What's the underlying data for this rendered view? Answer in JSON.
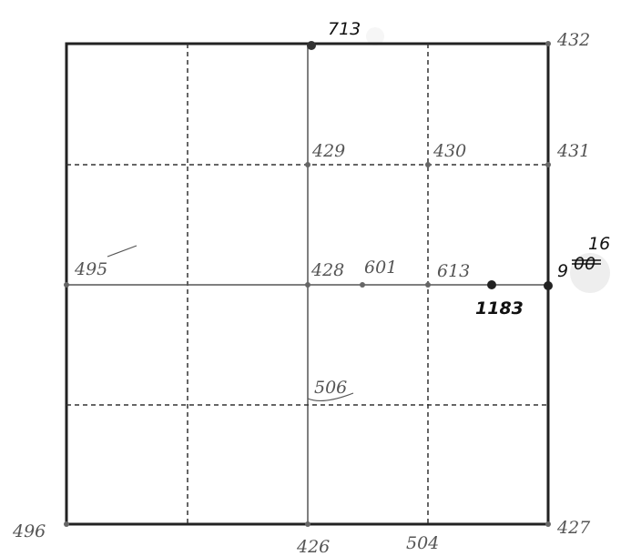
{
  "colors": {
    "ink": "#222222",
    "pencil": "#555555",
    "paper": "#ffffff"
  },
  "labels": {
    "top_mid": "713",
    "top_right": "432",
    "r1_mid": "429",
    "r1_c3": "430",
    "r1_right": "431",
    "center_left": "495",
    "center_mid": "428",
    "center_c25": "601",
    "center_c3": "613",
    "center_pt": "1183",
    "right_main": "9",
    "right_struck": "00",
    "right_over": "16",
    "lower_mid": "506",
    "bottom_left": "496",
    "bottom_mid": "426",
    "bottom_c3": "504",
    "bottom_right": "427"
  }
}
